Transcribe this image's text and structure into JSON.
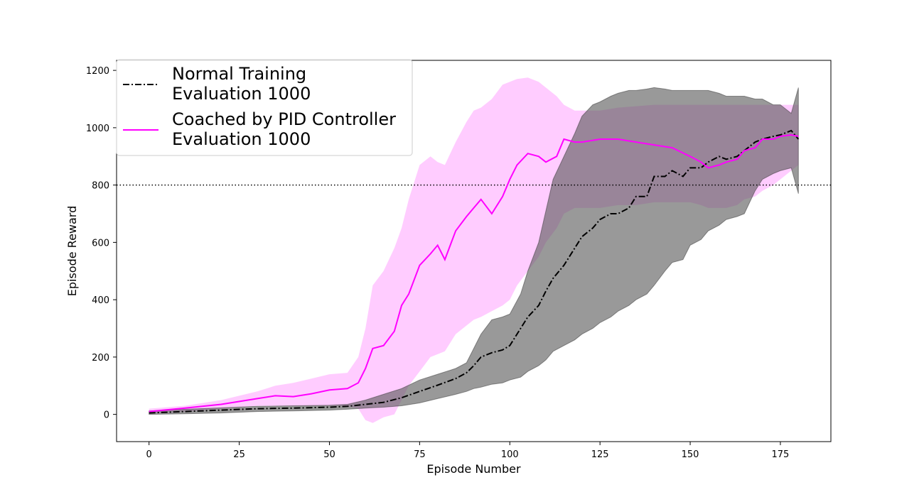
{
  "chart_data": {
    "type": "line",
    "xlabel": "Episode Number",
    "ylabel": "Episode Reward",
    "xlim": [
      -9,
      189
    ],
    "ylim": [
      -95,
      1235
    ],
    "xticks": [
      0,
      25,
      50,
      75,
      100,
      125,
      150,
      175
    ],
    "yticks": [
      0,
      200,
      400,
      600,
      800,
      1000,
      1200
    ],
    "reference_line": {
      "y": 800,
      "style": "dotted",
      "color": "#000000"
    },
    "grid": false,
    "legend_position": "top-left",
    "series": [
      {
        "name": "Normal Training\nEvaluation 1000",
        "legend_lines": [
          "Normal Training",
          "Evaluation 1000"
        ],
        "color": "#000000",
        "band_color": "#555555",
        "line_style": "dashdot",
        "x": [
          0,
          10,
          20,
          30,
          40,
          50,
          55,
          60,
          65,
          70,
          75,
          80,
          85,
          88,
          90,
          92,
          95,
          98,
          100,
          103,
          105,
          108,
          110,
          112,
          115,
          118,
          120,
          123,
          125,
          128,
          130,
          133,
          135,
          138,
          140,
          143,
          145,
          148,
          150,
          153,
          155,
          158,
          160,
          163,
          165,
          168,
          170,
          173,
          175,
          178,
          180
        ],
        "mean": [
          5,
          10,
          15,
          20,
          22,
          25,
          28,
          35,
          42,
          58,
          80,
          102,
          125,
          145,
          170,
          200,
          215,
          225,
          240,
          300,
          340,
          380,
          430,
          475,
          520,
          580,
          620,
          650,
          680,
          700,
          700,
          720,
          760,
          760,
          830,
          830,
          850,
          830,
          860,
          860,
          880,
          900,
          890,
          900,
          920,
          950,
          960,
          970,
          975,
          990,
          960
        ],
        "upper": [
          12,
          18,
          23,
          28,
          30,
          32,
          35,
          50,
          70,
          90,
          120,
          140,
          160,
          180,
          230,
          280,
          330,
          340,
          350,
          420,
          500,
          600,
          710,
          820,
          900,
          980,
          1040,
          1080,
          1090,
          1110,
          1120,
          1130,
          1130,
          1135,
          1140,
          1135,
          1130,
          1130,
          1130,
          1130,
          1130,
          1120,
          1110,
          1110,
          1110,
          1100,
          1100,
          1080,
          1080,
          1050,
          1140
        ],
        "lower": [
          0,
          2,
          5,
          10,
          12,
          15,
          18,
          22,
          25,
          30,
          40,
          55,
          70,
          80,
          90,
          95,
          105,
          110,
          120,
          130,
          150,
          170,
          190,
          220,
          240,
          260,
          280,
          300,
          320,
          340,
          360,
          380,
          400,
          420,
          450,
          500,
          530,
          540,
          590,
          610,
          640,
          660,
          680,
          690,
          700,
          780,
          820,
          840,
          850,
          860,
          770
        ]
      },
      {
        "name": "Coached by PID Controller\nEvaluation 1000",
        "legend_lines": [
          "Coached by PID Controller",
          "Evaluation 1000"
        ],
        "color": "#ff00ff",
        "band_color": "#ffaaff",
        "line_style": "solid",
        "x": [
          0,
          10,
          20,
          30,
          35,
          40,
          45,
          50,
          55,
          58,
          60,
          62,
          65,
          68,
          70,
          72,
          75,
          78,
          80,
          82,
          85,
          88,
          90,
          92,
          95,
          98,
          100,
          102,
          105,
          108,
          110,
          113,
          115,
          118,
          120,
          125,
          130,
          135,
          140,
          145,
          150,
          153,
          155,
          158,
          160,
          163,
          165,
          168,
          170,
          173,
          175,
          178,
          180
        ],
        "mean": [
          10,
          22,
          35,
          55,
          65,
          62,
          72,
          85,
          90,
          110,
          160,
          230,
          240,
          290,
          380,
          420,
          520,
          560,
          590,
          540,
          640,
          690,
          720,
          750,
          700,
          760,
          820,
          870,
          910,
          900,
          880,
          900,
          960,
          950,
          950,
          960,
          960,
          950,
          940,
          930,
          900,
          880,
          860,
          870,
          880,
          890,
          920,
          930,
          960,
          960,
          970,
          975,
          970
        ],
        "upper": [
          20,
          30,
          50,
          80,
          100,
          110,
          125,
          140,
          145,
          200,
          300,
          450,
          500,
          580,
          650,
          750,
          870,
          900,
          880,
          870,
          950,
          1020,
          1060,
          1070,
          1100,
          1150,
          1160,
          1170,
          1175,
          1160,
          1140,
          1110,
          1080,
          1060,
          1060,
          1060,
          1070,
          1075,
          1080,
          1080,
          1080,
          1080,
          1080,
          1080,
          1080,
          1080,
          1080,
          1080,
          1080,
          1080,
          1080,
          1080,
          1080
        ],
        "lower": [
          5,
          10,
          20,
          30,
          30,
          30,
          30,
          30,
          30,
          20,
          -20,
          -30,
          -10,
          0,
          50,
          100,
          150,
          200,
          210,
          220,
          280,
          310,
          330,
          340,
          360,
          380,
          400,
          450,
          500,
          550,
          600,
          650,
          700,
          720,
          720,
          720,
          730,
          730,
          740,
          740,
          740,
          730,
          720,
          720,
          720,
          730,
          750,
          760,
          780,
          800,
          820,
          850,
          870
        ]
      }
    ]
  }
}
